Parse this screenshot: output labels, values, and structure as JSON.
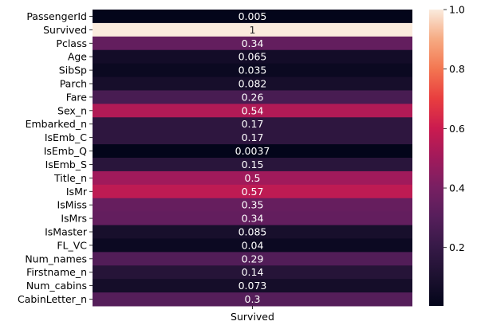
{
  "chart_data": {
    "type": "heatmap",
    "title": "",
    "xlabel": "",
    "ylabel": "",
    "x_categories": [
      "Survived"
    ],
    "y_categories": [
      "PassengerId",
      "Survived",
      "Pclass",
      "Age",
      "SibSp",
      "Parch",
      "Fare",
      "Sex_n",
      "Embarked_n",
      "IsEmb_C",
      "IsEmb_Q",
      "IsEmb_S",
      "Title_n",
      "IsMr",
      "IsMiss",
      "IsMrs",
      "IsMaster",
      "FL_VC",
      "Num_names",
      "Firstname_n",
      "Num_cabins",
      "CabinLetter_n"
    ],
    "values": [
      0.005,
      1,
      0.34,
      0.065,
      0.035,
      0.082,
      0.26,
      0.54,
      0.17,
      0.17,
      0.0037,
      0.15,
      0.5,
      0.57,
      0.35,
      0.34,
      0.085,
      0.04,
      0.29,
      0.14,
      0.073,
      0.3
    ],
    "value_labels": [
      "0.005",
      "1",
      "0.34",
      "0.065",
      "0.035",
      "0.082",
      "0.26",
      "0.54",
      "0.17",
      "0.17",
      "0.0037",
      "0.15",
      "0.5",
      "0.57",
      "0.35",
      "0.34",
      "0.085",
      "0.04",
      "0.29",
      "0.14",
      "0.073",
      "0.3"
    ],
    "colormap": "rocket",
    "colorbar": {
      "range": [
        0.0037,
        1.0
      ],
      "ticks": [
        0.2,
        0.4,
        0.6,
        0.8,
        1.0
      ],
      "tick_labels": [
        "0.2",
        "0.4",
        "0.6",
        "0.8",
        "1.0"
      ],
      "placement": "right"
    },
    "grid": false
  }
}
